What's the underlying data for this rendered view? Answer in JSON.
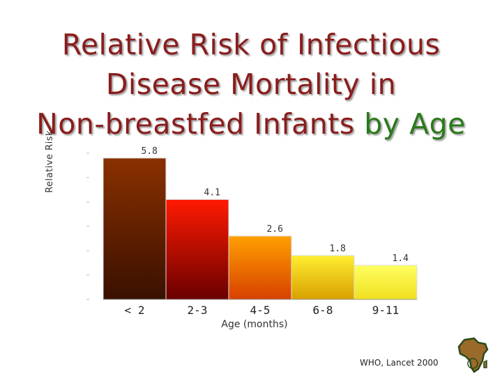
{
  "title": {
    "line1": "Relative Risk of Infectious",
    "line2": "Disease Mortality in",
    "line3_main": "Non-breastfed Infants",
    "line3_accent": "by Age"
  },
  "source": "WHO, Lancet 2000",
  "chart_data": {
    "type": "bar",
    "categories": [
      "< 2",
      "2-3",
      "4-5",
      "6-8",
      "9-11"
    ],
    "values": [
      5.8,
      4.1,
      2.6,
      1.8,
      1.4
    ],
    "data_labels": [
      "5.8",
      "4.1",
      "2.6",
      "1.8",
      "1.4"
    ],
    "xlabel": "Age (months)",
    "ylabel": "Relative Risk",
    "ylim": [
      0,
      6
    ],
    "grid": false,
    "legend": "none",
    "bar_colors": [
      [
        "#8a3000",
        "#3a1000"
      ],
      [
        "#ff1a00",
        "#6a0000"
      ],
      [
        "#ffa000",
        "#d84000"
      ],
      [
        "#ffee30",
        "#d8a000"
      ],
      [
        "#ffff60",
        "#f0e020"
      ]
    ]
  }
}
